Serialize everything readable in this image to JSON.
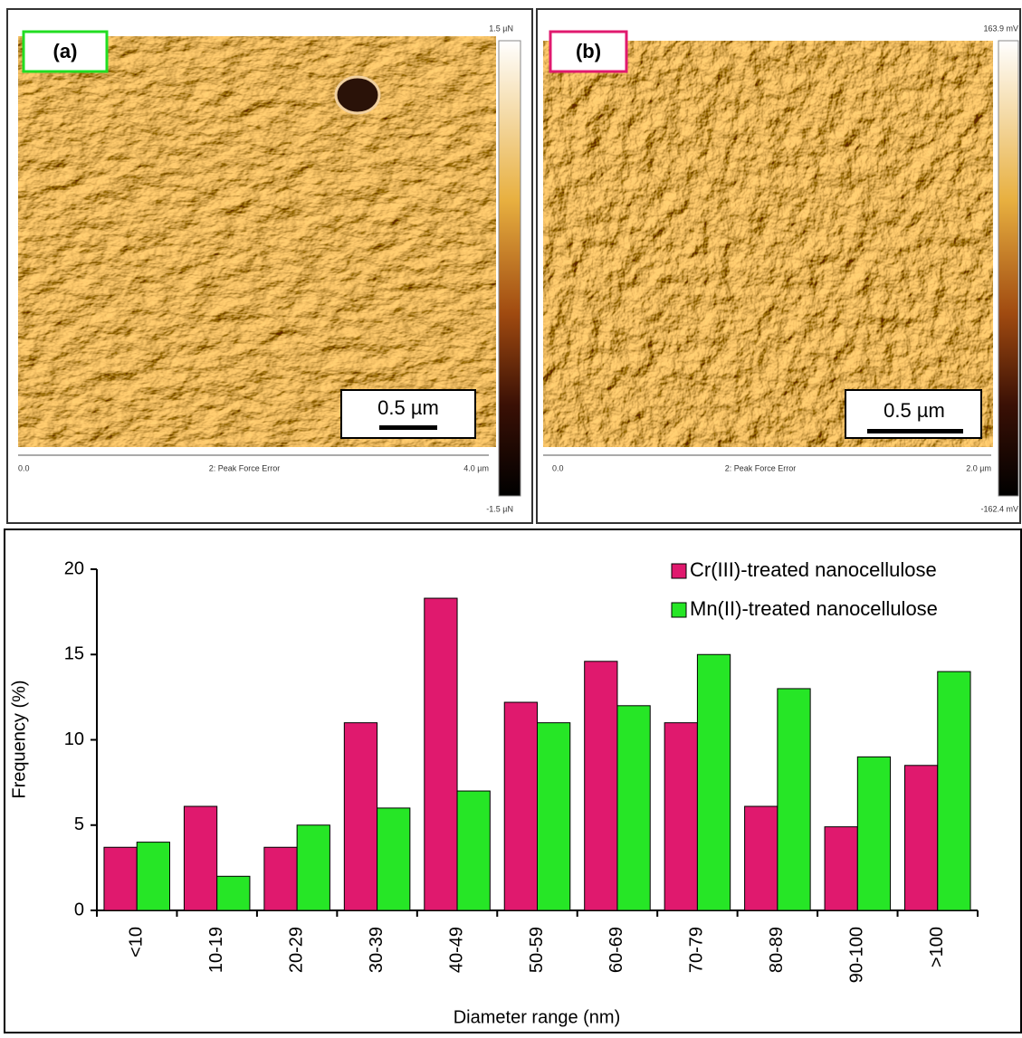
{
  "panels": [
    {
      "label": "(a)",
      "scale_bar": "0.5 µm",
      "colorbar_max": "1.5 µN",
      "colorbar_min": "-1.5 µN",
      "axis_start": "0.0",
      "channel": "2: Peak Force Error",
      "axis_end": "4.0 µm",
      "label_color": "#22dd22"
    },
    {
      "label": "(b)",
      "scale_bar": "0.5 µm",
      "colorbar_max": "163.9 mV",
      "colorbar_min": "-162.4 mV",
      "axis_start": "0.0",
      "channel": "2: Peak Force Error",
      "axis_end": "2.0 µm",
      "label_color": "#e0196e"
    }
  ],
  "chart_data": {
    "type": "bar",
    "x_label": "Diameter range (nm)",
    "y_label": "Frequency (%)",
    "categories": [
      "<10",
      "10-19",
      "20-29",
      "30-39",
      "40-49",
      "50-59",
      "60-69",
      "70-79",
      "80-89",
      "90-100",
      ">100"
    ],
    "series": [
      {
        "name": "Cr(III)-treated nanocellulose",
        "color": "#e0196e",
        "values": [
          3.7,
          6.1,
          3.7,
          11,
          18.3,
          12.2,
          14.6,
          11,
          6.1,
          4.9,
          8.5
        ]
      },
      {
        "name": "Mn(II)-treated nanocellulose",
        "color": "#26e626",
        "values": [
          4,
          2,
          5,
          6,
          7,
          11,
          12,
          15,
          13,
          9,
          14
        ]
      }
    ],
    "ylim": [
      0,
      20
    ],
    "yticks": [
      0,
      5,
      10,
      15,
      20
    ],
    "grid": false,
    "legend": "top-right"
  }
}
